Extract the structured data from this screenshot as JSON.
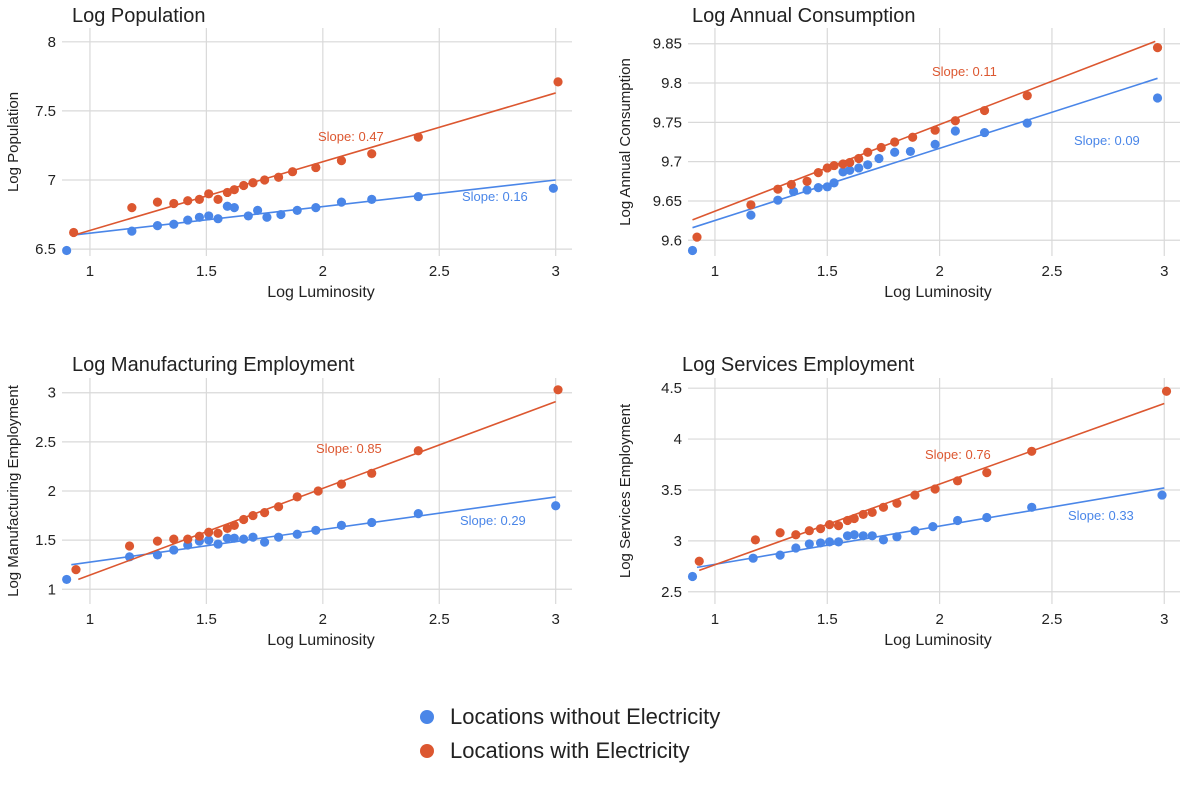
{
  "colors": {
    "without": "#4a86e8",
    "with": "#dc5730",
    "grid": "#d9d9d9",
    "text": "#222222"
  },
  "legend": {
    "without_label": "Locations without Electricity",
    "with_label": "Locations with Electricity",
    "placement": "bottom-center"
  },
  "chart_data": [
    {
      "type": "scatter",
      "title": "Log Population",
      "xlabel": "Log Luminosity",
      "ylabel": "Log Population",
      "xlim": [
        0.88,
        3.07
      ],
      "ylim": [
        6.45,
        8.1
      ],
      "xticks": [
        1,
        1.5,
        2,
        2.5,
        3
      ],
      "yticks": [
        6.5,
        7,
        7.5,
        8
      ],
      "xtick_labels": [
        "1",
        "1.5",
        "2",
        "2.5",
        "3"
      ],
      "ytick_labels": [
        "6.5",
        "7",
        "7.5",
        "8"
      ],
      "grid": true,
      "series": [
        {
          "name": "Locations without Electricity",
          "color_key": "without",
          "x": [
            0.9,
            1.18,
            1.29,
            1.36,
            1.42,
            1.47,
            1.51,
            1.55,
            1.59,
            1.62,
            1.68,
            1.72,
            1.76,
            1.82,
            1.89,
            1.97,
            2.08,
            2.21,
            2.41,
            2.99
          ],
          "y": [
            6.49,
            6.63,
            6.67,
            6.68,
            6.71,
            6.73,
            6.74,
            6.72,
            6.81,
            6.8,
            6.74,
            6.78,
            6.73,
            6.75,
            6.78,
            6.8,
            6.84,
            6.86,
            6.88,
            6.94
          ],
          "fit": {
            "x": [
              0.92,
              3.0
            ],
            "y": [
              6.6,
              7.0
            ]
          },
          "slope_label": "Slope:  0.16"
        },
        {
          "name": "Locations with Electricity",
          "color_key": "with",
          "x": [
            0.93,
            1.18,
            1.29,
            1.36,
            1.42,
            1.47,
            1.51,
            1.55,
            1.59,
            1.62,
            1.66,
            1.7,
            1.75,
            1.81,
            1.87,
            1.97,
            2.08,
            2.21,
            2.41,
            3.01
          ],
          "y": [
            6.62,
            6.8,
            6.84,
            6.83,
            6.85,
            6.86,
            6.9,
            6.86,
            6.91,
            6.93,
            6.96,
            6.98,
            7.0,
            7.02,
            7.06,
            7.09,
            7.14,
            7.19,
            7.31,
            7.71
          ],
          "fit": {
            "x": [
              0.93,
              3.0
            ],
            "y": [
              6.6,
              7.63
            ]
          },
          "slope_label": "Slope:  0.47"
        }
      ]
    },
    {
      "type": "scatter",
      "title": "Log Annual Consumption",
      "xlabel": "Log Luminosity",
      "ylabel": "Log Annual Consumption",
      "xlim": [
        0.88,
        3.07
      ],
      "ylim": [
        9.58,
        9.87
      ],
      "xticks": [
        1,
        1.5,
        2,
        2.5,
        3
      ],
      "yticks": [
        9.6,
        9.65,
        9.7,
        9.75,
        9.8,
        9.85
      ],
      "xtick_labels": [
        "1",
        "1.5",
        "2",
        "2.5",
        "3"
      ],
      "ytick_labels": [
        "9.6",
        "9.65",
        "9.7",
        "9.75",
        "9.8",
        "9.85"
      ],
      "grid": true,
      "series": [
        {
          "name": "Locations without Electricity",
          "color_key": "without",
          "x": [
            0.9,
            1.16,
            1.28,
            1.35,
            1.41,
            1.46,
            1.5,
            1.53,
            1.57,
            1.6,
            1.64,
            1.68,
            1.73,
            1.8,
            1.87,
            1.98,
            2.07,
            2.2,
            2.39,
            2.97
          ],
          "y": [
            9.587,
            9.632,
            9.651,
            9.662,
            9.664,
            9.667,
            9.668,
            9.673,
            9.687,
            9.689,
            9.692,
            9.696,
            9.704,
            9.712,
            9.713,
            9.722,
            9.739,
            9.737,
            9.749,
            9.781
          ],
          "fit": {
            "x": [
              0.9,
              2.97
            ],
            "y": [
              9.616,
              9.806
            ]
          },
          "slope_label": "Slope:  0.09"
        },
        {
          "name": "Locations with Electricity",
          "color_key": "with",
          "x": [
            0.92,
            1.16,
            1.28,
            1.34,
            1.41,
            1.46,
            1.5,
            1.53,
            1.57,
            1.6,
            1.64,
            1.68,
            1.74,
            1.8,
            1.88,
            1.98,
            2.07,
            2.2,
            2.39,
            2.97
          ],
          "y": [
            9.604,
            9.645,
            9.665,
            9.671,
            9.675,
            9.686,
            9.692,
            9.695,
            9.697,
            9.699,
            9.704,
            9.712,
            9.718,
            9.725,
            9.731,
            9.74,
            9.752,
            9.765,
            9.784,
            9.845
          ],
          "fit": {
            "x": [
              0.9,
              2.96
            ],
            "y": [
              9.626,
              9.853
            ]
          },
          "slope_label": "Slope:  0.11"
        }
      ]
    },
    {
      "type": "scatter",
      "title": "Log Manufacturing Employment",
      "xlabel": "Log Luminosity",
      "ylabel": "Log Manufacturing Employment",
      "xlim": [
        0.88,
        3.07
      ],
      "ylim": [
        0.85,
        3.15
      ],
      "xticks": [
        1,
        1.5,
        2,
        2.5,
        3
      ],
      "yticks": [
        1,
        1.5,
        2,
        2.5,
        3
      ],
      "xtick_labels": [
        "1",
        "1.5",
        "2",
        "2.5",
        "3"
      ],
      "ytick_labels": [
        "1",
        "1.5",
        "2",
        "2.5",
        "3"
      ],
      "grid": true,
      "series": [
        {
          "name": "Locations without Electricity",
          "color_key": "without",
          "x": [
            0.9,
            1.17,
            1.29,
            1.36,
            1.42,
            1.47,
            1.51,
            1.55,
            1.59,
            1.62,
            1.66,
            1.7,
            1.75,
            1.81,
            1.89,
            1.97,
            2.08,
            2.21,
            2.41,
            3.0
          ],
          "y": [
            1.1,
            1.33,
            1.35,
            1.4,
            1.45,
            1.49,
            1.5,
            1.46,
            1.52,
            1.52,
            1.51,
            1.53,
            1.48,
            1.53,
            1.56,
            1.6,
            1.65,
            1.68,
            1.77,
            1.85
          ],
          "fit": {
            "x": [
              0.92,
              3.0
            ],
            "y": [
              1.25,
              1.94
            ]
          },
          "slope_label": "Slope:  0.29"
        },
        {
          "name": "Locations with Electricity",
          "color_key": "with",
          "x": [
            0.94,
            1.17,
            1.29,
            1.36,
            1.42,
            1.47,
            1.51,
            1.55,
            1.59,
            1.62,
            1.66,
            1.7,
            1.75,
            1.81,
            1.89,
            1.98,
            2.08,
            2.21,
            2.41,
            3.01
          ],
          "y": [
            1.2,
            1.44,
            1.49,
            1.51,
            1.51,
            1.54,
            1.58,
            1.57,
            1.62,
            1.65,
            1.71,
            1.75,
            1.78,
            1.84,
            1.94,
            2.0,
            2.07,
            2.18,
            2.41,
            3.03
          ],
          "fit": {
            "x": [
              0.95,
              3.0
            ],
            "y": [
              1.1,
              2.91
            ]
          },
          "slope_label": "Slope:  0.85"
        }
      ]
    },
    {
      "type": "scatter",
      "title": "Log Services Employment",
      "xlabel": "Log Luminosity",
      "ylabel": "Log Services Employment",
      "xlim": [
        0.88,
        3.07
      ],
      "ylim": [
        2.38,
        4.6
      ],
      "xticks": [
        1,
        1.5,
        2,
        2.5,
        3
      ],
      "yticks": [
        2.5,
        3,
        3.5,
        4,
        4.5
      ],
      "xtick_labels": [
        "1",
        "1.5",
        "2",
        "2.5",
        "3"
      ],
      "ytick_labels": [
        "2.5",
        "3",
        "3.5",
        "4",
        "4.5"
      ],
      "grid": true,
      "series": [
        {
          "name": "Locations without Electricity",
          "color_key": "without",
          "x": [
            0.9,
            1.17,
            1.29,
            1.36,
            1.42,
            1.47,
            1.51,
            1.55,
            1.59,
            1.62,
            1.66,
            1.7,
            1.75,
            1.81,
            1.89,
            1.97,
            2.08,
            2.21,
            2.41,
            2.99
          ],
          "y": [
            2.65,
            2.83,
            2.86,
            2.93,
            2.97,
            2.98,
            2.99,
            2.99,
            3.05,
            3.06,
            3.05,
            3.05,
            3.01,
            3.04,
            3.1,
            3.14,
            3.2,
            3.23,
            3.33,
            3.45
          ],
          "fit": {
            "x": [
              0.92,
              3.0
            ],
            "y": [
              2.74,
              3.52
            ]
          },
          "slope_label": "Slope:  0.33"
        },
        {
          "name": "Locations with Electricity",
          "color_key": "with",
          "x": [
            0.93,
            1.18,
            1.29,
            1.36,
            1.42,
            1.47,
            1.51,
            1.55,
            1.59,
            1.62,
            1.66,
            1.7,
            1.75,
            1.81,
            1.89,
            1.98,
            2.08,
            2.21,
            2.41,
            3.01
          ],
          "y": [
            2.8,
            3.01,
            3.08,
            3.06,
            3.1,
            3.12,
            3.16,
            3.15,
            3.2,
            3.22,
            3.26,
            3.28,
            3.33,
            3.37,
            3.45,
            3.51,
            3.59,
            3.67,
            3.88,
            4.47
          ],
          "fit": {
            "x": [
              0.93,
              3.0
            ],
            "y": [
              2.71,
              4.35
            ]
          },
          "slope_label": "Slope:  0.76"
        }
      ]
    }
  ]
}
